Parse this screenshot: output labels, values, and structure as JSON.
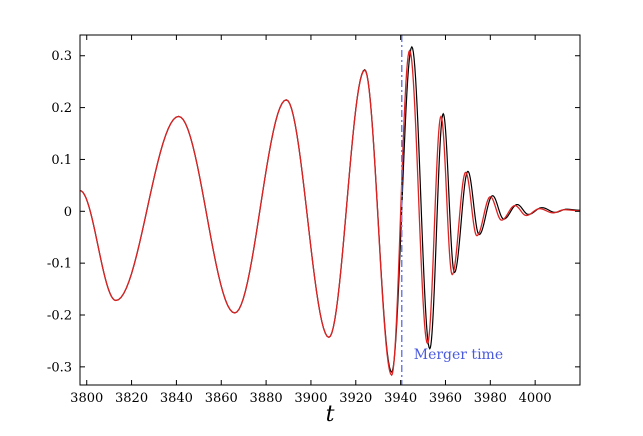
{
  "chart_data": {
    "type": "line",
    "xlabel": "t",
    "ylabel": "",
    "xlim": [
      3797,
      4020
    ],
    "ylim": [
      -0.335,
      0.34
    ],
    "xticks": [
      3800,
      3820,
      3840,
      3860,
      3880,
      3900,
      3920,
      3940,
      3960,
      3980,
      4000
    ],
    "yticks": [
      -0.3,
      -0.2,
      -0.1,
      0,
      0.1,
      0.2,
      0.3
    ],
    "xtick_labels": [
      "3800",
      "3820",
      "3840",
      "3860",
      "3880",
      "3900",
      "3920",
      "3940",
      "3960",
      "3980",
      "4000"
    ],
    "ytick_labels": [
      "-0.3",
      "-0.2",
      "-0.1",
      "0",
      "0.1",
      "0.2",
      "0.3"
    ],
    "grid": false,
    "colors": {
      "black_curve": "#000000",
      "red_curve": "#dd2222",
      "merger_line": "#6f7fe8",
      "annotation": "#4a5adf"
    },
    "series": [
      {
        "color": "#000000",
        "extrema": [
          [
            3797,
            0.04
          ],
          [
            3813,
            -0.172
          ],
          [
            3841,
            0.183
          ],
          [
            3866,
            -0.196
          ],
          [
            3889,
            0.215
          ],
          [
            3908,
            -0.243
          ],
          [
            3924,
            0.273
          ],
          [
            3936,
            -0.31
          ],
          [
            3945,
            0.317
          ],
          [
            3953,
            -0.265
          ],
          [
            3959,
            0.188
          ],
          [
            3964,
            -0.118
          ],
          [
            3970,
            0.077
          ],
          [
            3975,
            -0.045
          ],
          [
            3981,
            0.03
          ],
          [
            3986,
            -0.015
          ],
          [
            3992,
            0.013
          ],
          [
            3997,
            -0.006
          ],
          [
            4003,
            0.007
          ],
          [
            4009,
            -0.002
          ],
          [
            4014,
            0.004
          ],
          [
            4020,
            0.002
          ]
        ]
      },
      {
        "color": "#dd2222",
        "extrema": [
          [
            3797,
            0.04
          ],
          [
            3813,
            -0.172
          ],
          [
            3841,
            0.183
          ],
          [
            3866,
            -0.196
          ],
          [
            3889,
            0.215
          ],
          [
            3908,
            -0.243
          ],
          [
            3924,
            0.272
          ],
          [
            3936,
            -0.316
          ],
          [
            3944,
            0.31
          ],
          [
            3952,
            -0.255
          ],
          [
            3958,
            0.183
          ],
          [
            3963,
            -0.122
          ],
          [
            3969,
            0.075
          ],
          [
            3974,
            -0.047
          ],
          [
            3980,
            0.028
          ],
          [
            3985,
            -0.017
          ],
          [
            3991,
            0.011
          ],
          [
            3996,
            -0.008
          ],
          [
            4002,
            0.005
          ],
          [
            4008,
            -0.003
          ],
          [
            4013,
            0.003
          ],
          [
            4020,
            0.001
          ]
        ]
      }
    ],
    "merger_time": 3940.5,
    "annotation": "Merger time"
  }
}
